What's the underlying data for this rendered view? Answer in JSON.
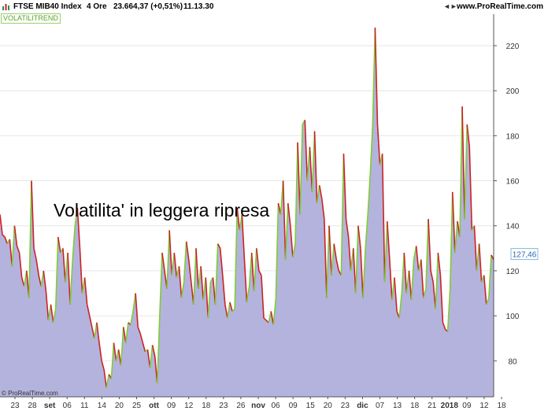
{
  "header": {
    "symbol": "FTSE MIB40 Index",
    "timeframe": "4 Ore",
    "price_change": "23.664,37 (+0,51%)",
    "time": "11.13.30",
    "site": "www.ProRealTime.com"
  },
  "indicator_label": "VOLATILITREND",
  "annotation": "Volatilita' in leggera ripresa",
  "copyright": "© ProRealTime.com",
  "icons": [
    "chart-icon",
    "arrow-icon"
  ],
  "colors": {
    "fill": "#b3b3de",
    "rising": "#7fcc33",
    "falling": "#cc2222",
    "grid": "#e6e6e6"
  },
  "chart_data": {
    "type": "area",
    "title": "",
    "xlabel": "",
    "ylabel": "",
    "ylim": [
      64,
      234
    ],
    "yticks": [
      80,
      100,
      120,
      140,
      160,
      180,
      200,
      220
    ],
    "ytick_labels": [
      "80",
      "100",
      "120",
      "140",
      "160",
      "180",
      "200",
      "220"
    ],
    "xtick_labels": [
      "23",
      "28",
      "set",
      "06",
      "11",
      "14",
      "20",
      "25",
      "ott",
      "09",
      "12",
      "18",
      "23",
      "26",
      "nov",
      "06",
      "09",
      "15",
      "20",
      "23",
      "dic",
      "07",
      "13",
      "18",
      "21",
      "2018",
      "09",
      "12",
      "18"
    ],
    "bold_xticks": [
      "set",
      "ott",
      "nov",
      "dic",
      "2018"
    ],
    "last_value": 127.46,
    "last_value_label": "127,46",
    "series": [
      {
        "values": [
          145,
          136,
          135,
          132,
          134,
          122,
          140,
          131,
          128,
          117,
          113,
          120,
          108,
          160,
          130,
          125,
          118,
          113,
          120,
          111,
          98,
          105,
          97,
          103,
          135,
          128,
          130,
          115,
          128,
          105,
          125,
          140,
          148,
          130,
          110,
          117,
          105,
          100,
          95,
          90,
          97,
          88,
          80,
          76,
          68,
          74,
          72,
          88,
          80,
          85,
          78,
          95,
          88,
          97,
          96,
          102,
          110,
          95,
          92,
          88,
          84,
          85,
          77,
          87,
          82,
          70,
          100,
          128,
          120,
          112,
          138,
          118,
          128,
          117,
          122,
          108,
          115,
          133,
          125,
          115,
          105,
          130,
          112,
          122,
          107,
          117,
          99,
          115,
          117,
          105,
          132,
          130,
          118,
          105,
          99,
          106,
          102,
          103,
          148,
          138,
          145,
          125,
          106,
          113,
          128,
          111,
          130,
          120,
          118,
          99,
          98,
          97,
          102,
          96,
          108,
          150,
          145,
          160,
          125,
          150,
          140,
          126,
          132,
          177,
          145,
          185,
          187,
          160,
          175,
          155,
          182,
          150,
          158,
          152,
          143,
          108,
          140,
          118,
          132,
          125,
          120,
          118,
          172,
          143,
          135,
          120,
          130,
          110,
          140,
          130,
          108,
          130,
          145,
          163,
          185,
          228,
          185,
          167,
          172,
          115,
          142,
          125,
          107,
          117,
          102,
          99,
          110,
          128,
          110,
          120,
          107,
          125,
          131,
          120,
          125,
          108,
          112,
          143,
          120,
          115,
          103,
          128,
          118,
          97,
          94,
          93,
          112,
          155,
          128,
          142,
          135,
          193,
          143,
          185,
          175,
          138,
          140,
          120,
          132,
          115,
          118,
          105,
          108,
          127,
          125
        ]
      }
    ]
  }
}
